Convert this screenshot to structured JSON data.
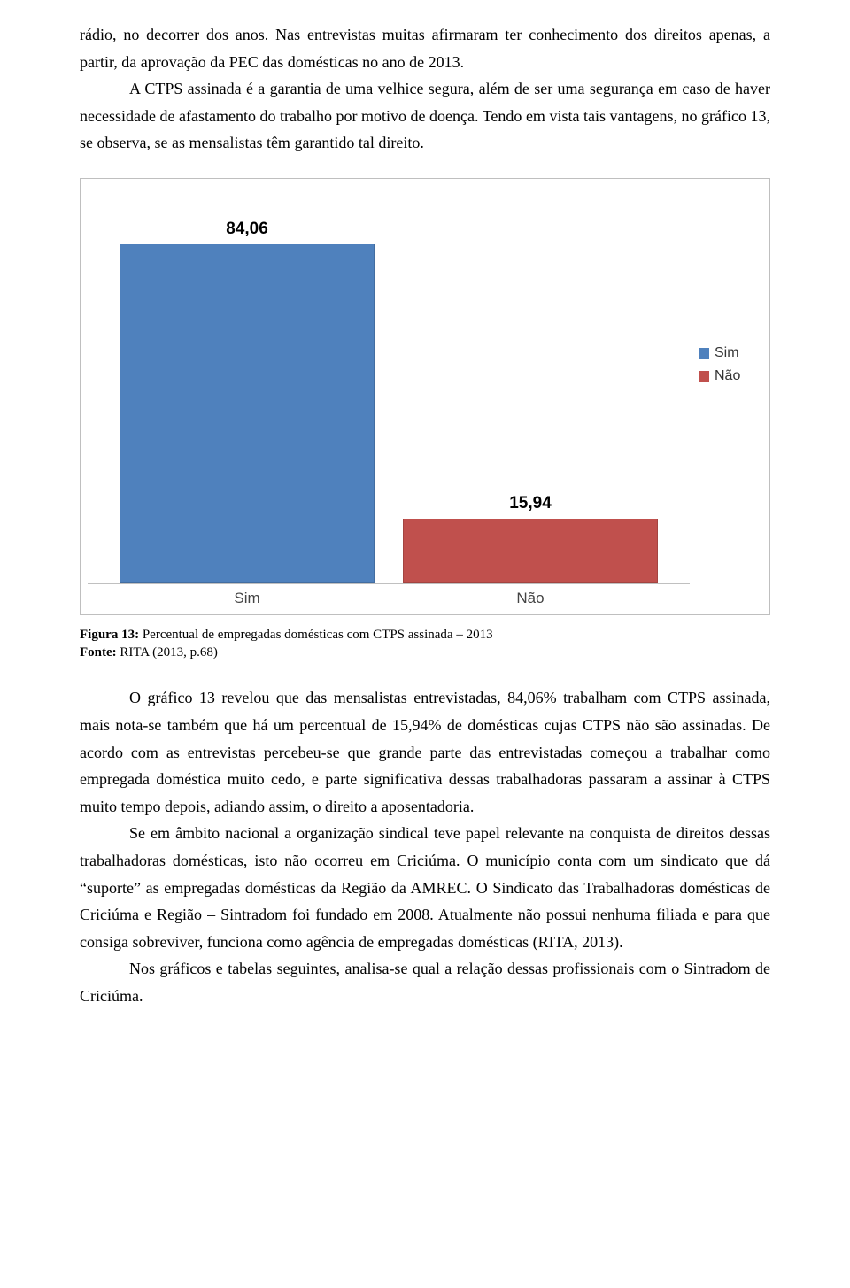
{
  "intro_text": "rádio, no decorrer dos anos. Nas entrevistas muitas afirmaram ter conhecimento dos direitos apenas, a partir, da aprovação da PEC das domésticas no ano de 2013.",
  "para2": "A CTPS assinada é a garantia de uma velhice segura, além de ser uma segurança em caso de haver necessidade de afastamento do trabalho por motivo de doença. Tendo em vista tais vantagens, no gráfico 13, se observa, se as mensalistas têm garantido tal direito.",
  "chart": {
    "type": "bar",
    "categories": [
      "Sim",
      "Não"
    ],
    "values": [
      84.06,
      15.94
    ],
    "value_labels": [
      "84,06",
      "15,94"
    ],
    "bar_colors": [
      "#4f81bd",
      "#c0504d"
    ],
    "legend_labels": [
      "Sim",
      "Não"
    ],
    "legend_colors": [
      "#4f81bd",
      "#c0504d"
    ],
    "y_max": 90,
    "bar_border": "#bfbfbf",
    "value_fontsize": 19,
    "value_fontweight": "700",
    "tick_fontsize": 17,
    "background": "#ffffff"
  },
  "caption_bold1": "Figura 13: ",
  "caption_text1": "Percentual de empregadas domésticas com CTPS assinada – 2013",
  "caption_bold2": "Fonte: ",
  "caption_text2": "RITA (2013, p.68)",
  "para3": "O gráfico 13 revelou que das mensalistas entrevistadas, 84,06% trabalham com CTPS assinada, mais nota-se também que há um percentual de 15,94% de domésticas cujas CTPS não são assinadas. De acordo com as entrevistas percebeu-se que grande parte das entrevistadas começou a trabalhar como empregada doméstica muito cedo, e parte significativa dessas trabalhadoras passaram a assinar à CTPS muito tempo depois, adiando assim, o direito a aposentadoria.",
  "para4": "Se em âmbito nacional  a organização sindical teve papel relevante na conquista de direitos dessas trabalhadoras domésticas, isto não ocorreu em Criciúma. O município conta com um sindicato que dá “suporte” as empregadas domésticas da Região da AMREC. O Sindicato das Trabalhadoras domésticas de Criciúma e Região – Sintradom foi fundado em 2008. Atualmente não possui nenhuma filiada e para que consiga sobreviver, funciona como agência de empregadas domésticas (RITA, 2013).",
  "para5": "Nos gráficos e tabelas seguintes, analisa-se qual a relação dessas profissionais com o Sintradom de Criciúma."
}
